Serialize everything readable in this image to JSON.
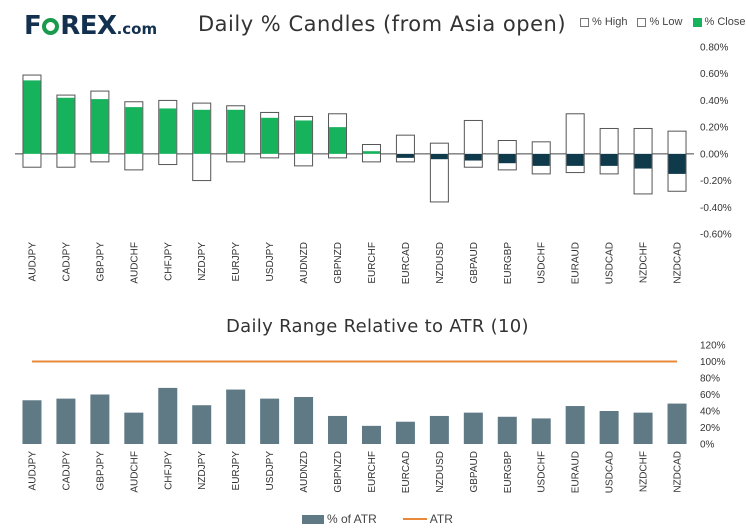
{
  "logo": {
    "text_a": "F",
    "text_b": "REX",
    "suffix": ".com",
    "ring_color": "#1a9a4d"
  },
  "colors": {
    "up_fill": "#17b25c",
    "down_fill": "#0e3a4c",
    "outline": "#555555",
    "atr_bar": "#5f7a85",
    "atr_line": "#e8883a"
  },
  "chart_data": [
    {
      "type": "candlestick",
      "title": "Daily % Candles (from Asia open)",
      "legend": [
        "% High",
        "% Low",
        "% Close"
      ],
      "legend_placement": "top-right",
      "ylim": [
        -0.6,
        0.8
      ],
      "yticks": [
        "0.80%",
        "0.60%",
        "0.40%",
        "0.20%",
        "0.00%",
        "-0.20%",
        "-0.40%",
        "-0.60%"
      ],
      "categories": [
        "AUDJPY",
        "CADJPY",
        "GBPJPY",
        "AUDCHF",
        "CHFJPY",
        "NZDJPY",
        "EURJPY",
        "USDJPY",
        "AUDNZD",
        "GBPNZD",
        "EURCHF",
        "EURCAD",
        "NZDUSD",
        "GBPAUD",
        "EURGBP",
        "USDCHF",
        "EURAUD",
        "USDCAD",
        "NZDCHF",
        "NZDCAD"
      ],
      "high": [
        0.59,
        0.44,
        0.47,
        0.39,
        0.4,
        0.38,
        0.36,
        0.31,
        0.28,
        0.3,
        0.07,
        0.14,
        0.08,
        0.25,
        0.1,
        0.09,
        0.3,
        0.19,
        0.19,
        0.17
      ],
      "low": [
        -0.1,
        -0.1,
        -0.06,
        -0.12,
        -0.08,
        -0.2,
        -0.06,
        -0.03,
        -0.09,
        -0.03,
        -0.06,
        -0.06,
        -0.36,
        -0.1,
        -0.12,
        -0.15,
        -0.14,
        -0.15,
        -0.3,
        -0.28
      ],
      "close": [
        0.55,
        0.42,
        0.41,
        0.35,
        0.34,
        0.33,
        0.33,
        0.27,
        0.25,
        0.2,
        0.02,
        -0.03,
        -0.04,
        -0.05,
        -0.07,
        -0.09,
        -0.09,
        -0.09,
        -0.11,
        -0.15
      ]
    },
    {
      "type": "bar",
      "title": "Daily Range Relative to ATR (10)",
      "legend": [
        "% of ATR",
        "ATR"
      ],
      "legend_placement": "bottom",
      "ylim": [
        0,
        120
      ],
      "yticks": [
        "120%",
        "100%",
        "80%",
        "60%",
        "40%",
        "20%",
        "0%"
      ],
      "categories": [
        "AUDJPY",
        "CADJPY",
        "GBPJPY",
        "AUDCHF",
        "CHFJPY",
        "NZDJPY",
        "EURJPY",
        "USDJPY",
        "AUDNZD",
        "GBPNZD",
        "EURCHF",
        "EURCAD",
        "NZDUSD",
        "GBPAUD",
        "EURGBP",
        "USDCHF",
        "EURAUD",
        "USDCAD",
        "NZDCHF",
        "NZDCAD"
      ],
      "series": [
        {
          "name": "% of ATR",
          "values": [
            53,
            55,
            60,
            38,
            68,
            47,
            66,
            55,
            57,
            34,
            22,
            27,
            34,
            38,
            33,
            31,
            46,
            40,
            38,
            49
          ]
        },
        {
          "name": "ATR",
          "values": [
            100,
            100,
            100,
            100,
            100,
            100,
            100,
            100,
            100,
            100,
            100,
            100,
            100,
            100,
            100,
            100,
            100,
            100,
            100,
            100
          ]
        }
      ]
    }
  ]
}
